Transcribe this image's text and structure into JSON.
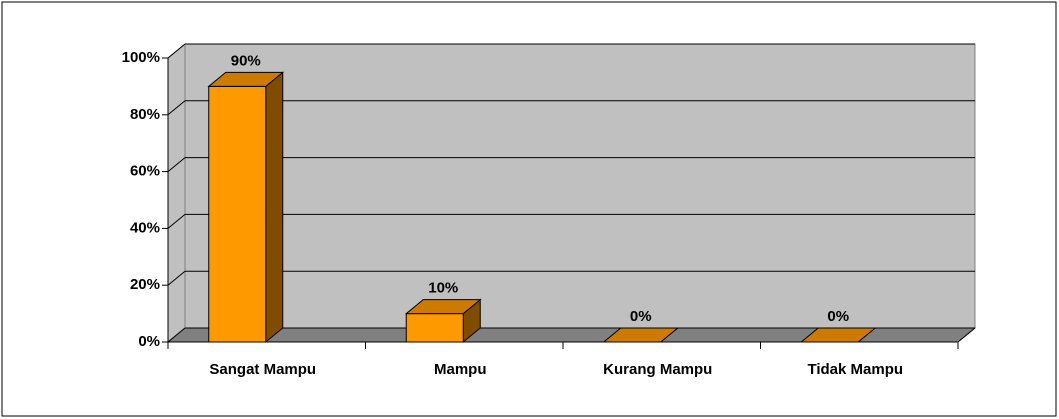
{
  "chart_data": {
    "type": "bar",
    "categories": [
      "Sangat Mampu",
      "Mampu",
      "Kurang Mampu",
      "Tidak Mampu"
    ],
    "values": [
      90,
      10,
      0,
      0
    ],
    "value_labels": [
      "90%",
      "10%",
      "0%",
      "0%"
    ],
    "color": "#ff9900",
    "ylim": [
      0,
      100
    ],
    "yticks": [
      {
        "value": 0,
        "label": "0%"
      },
      {
        "value": 20,
        "label": "20%"
      },
      {
        "value": 40,
        "label": "40%"
      },
      {
        "value": 60,
        "label": "60%"
      },
      {
        "value": 80,
        "label": "80%"
      },
      {
        "value": 100,
        "label": "100%"
      }
    ],
    "grid": true
  }
}
